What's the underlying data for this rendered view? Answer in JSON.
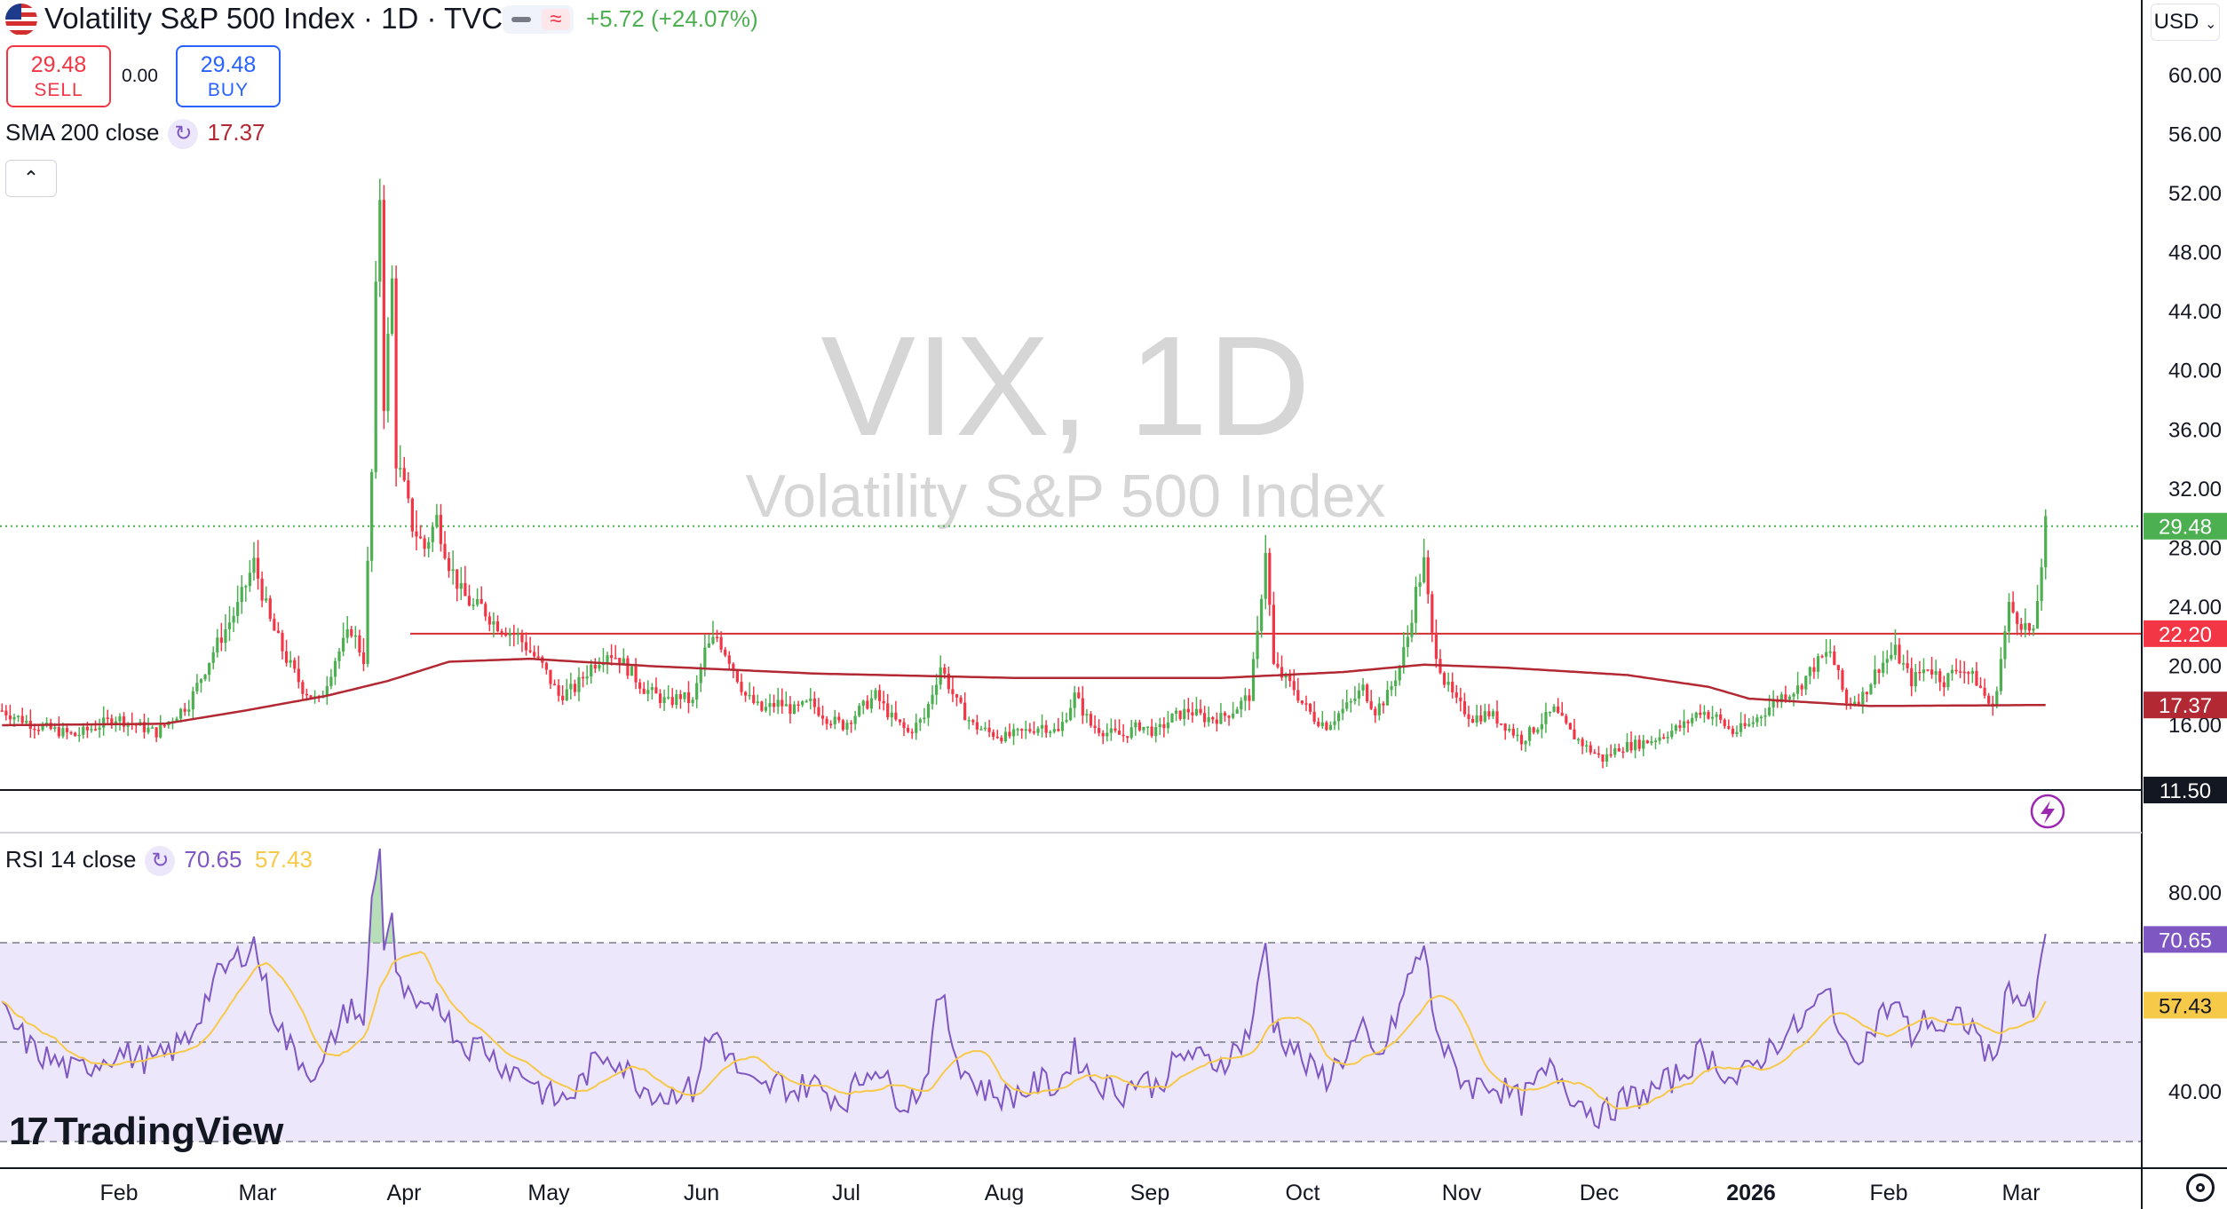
{
  "header": {
    "title": "Volatility S&P 500 Index · 1D · TVC",
    "change": "+5.72 (+24.07%)",
    "sell_price": "29.48",
    "sell_label": "SELL",
    "spread": "0.00",
    "buy_price": "29.48",
    "buy_label": "BUY",
    "currency": "USD",
    "collapse_icon": "chevron-up-icon",
    "dash_icon": "dash-icon",
    "wave_icon": "wave-icon",
    "flag_icon": "us-flag-icon",
    "refresh_icon": "refresh-icon"
  },
  "indicators": {
    "sma": {
      "label": "SMA 200 close",
      "value": "17.37"
    },
    "rsi": {
      "label": "RSI 14 close",
      "value": "70.65",
      "ma_value": "57.43"
    }
  },
  "watermark": {
    "symbol": "VIX, 1D",
    "name": "Volatility S&P 500 Index"
  },
  "brand": {
    "name": "TradingView"
  },
  "colors": {
    "up": "#4caf50",
    "down": "#f23645",
    "sma": "#b22833",
    "rsi": "#7e57c2",
    "rsi_ma": "#f7c948",
    "rsi_band": "#ede7fb",
    "hline": "#d32f2f"
  },
  "chart_data": [
    {
      "type": "candlestick",
      "title": "VIX, 1D",
      "price_axis": {
        "ticks": [
          "60.00",
          "56.00",
          "52.00",
          "48.00",
          "44.00",
          "40.00",
          "36.00",
          "32.00",
          "28.00",
          "24.00",
          "20.00",
          "16.00"
        ],
        "tick_values": [
          60,
          56,
          52,
          48,
          44,
          40,
          36,
          32,
          28,
          24,
          20,
          16
        ],
        "ylim": [
          10.0,
          61.5
        ]
      },
      "price_labels": [
        {
          "text": "29.48",
          "value": 29.48,
          "color": "#4caf50"
        },
        {
          "text": "22.20",
          "value": 22.2,
          "color": "#f23645"
        },
        {
          "text": "17.37",
          "value": 17.37,
          "color": "#b22833"
        },
        {
          "text": "11.50",
          "value": 11.5,
          "color": "#131722"
        }
      ],
      "horizontal_lines": [
        {
          "value": 22.2,
          "style": "solid",
          "from_month": "Apr"
        },
        {
          "value": 11.5,
          "style": "solid"
        }
      ],
      "last_price_line": 29.48,
      "months": [
        "Feb",
        "Mar",
        "Apr",
        "May",
        "Jun",
        "Jul",
        "Aug",
        "Sep",
        "Oct",
        "Nov",
        "Dec",
        "2026",
        "Feb",
        "Mar"
      ],
      "close_anchors": [
        [
          0,
          17
        ],
        [
          8,
          16
        ],
        [
          18,
          15.3
        ],
        [
          28,
          16.5
        ],
        [
          38,
          15.5
        ],
        [
          46,
          17.5
        ],
        [
          52,
          21
        ],
        [
          58,
          24
        ],
        [
          62,
          27
        ],
        [
          66,
          23
        ],
        [
          70,
          20.5
        ],
        [
          74,
          18.5
        ],
        [
          78,
          17.5
        ],
        [
          82,
          20.5
        ],
        [
          86,
          22.5
        ],
        [
          89,
          20.5
        ],
        [
          91,
          33
        ],
        [
          92,
          45
        ],
        [
          93,
          52
        ],
        [
          94,
          38
        ],
        [
          96,
          46
        ],
        [
          97,
          34
        ],
        [
          99,
          32
        ],
        [
          101,
          29.5
        ],
        [
          104,
          28
        ],
        [
          107,
          30
        ],
        [
          110,
          27
        ],
        [
          113,
          25
        ],
        [
          116,
          24
        ],
        [
          118,
          24
        ],
        [
          121,
          23
        ],
        [
          124,
          22.5
        ],
        [
          127,
          22
        ],
        [
          130,
          21
        ],
        [
          133,
          20
        ],
        [
          137,
          18
        ],
        [
          141,
          18.5
        ],
        [
          145,
          20
        ],
        [
          149,
          21
        ],
        [
          152,
          20.5
        ],
        [
          155,
          19.5
        ],
        [
          158,
          18.5
        ],
        [
          161,
          18
        ],
        [
          164,
          17.5
        ],
        [
          167,
          18
        ],
        [
          170,
          17.5
        ],
        [
          173,
          21
        ],
        [
          176,
          22
        ],
        [
          179,
          20.5
        ],
        [
          183,
          18
        ],
        [
          187,
          17
        ],
        [
          191,
          17.5
        ],
        [
          195,
          17
        ],
        [
          199,
          17.5
        ],
        [
          203,
          16.5
        ],
        [
          207,
          16
        ],
        [
          211,
          17
        ],
        [
          215,
          18
        ],
        [
          219,
          16.5
        ],
        [
          223,
          15.5
        ],
        [
          227,
          16.5
        ],
        [
          231,
          20
        ],
        [
          235,
          17.5
        ],
        [
          239,
          16
        ],
        [
          243,
          15.5
        ],
        [
          247,
          15.2
        ],
        [
          251,
          15.5
        ],
        [
          256,
          16
        ],
        [
          260,
          15.5
        ],
        [
          264,
          18
        ],
        [
          268,
          16
        ],
        [
          272,
          15.5
        ],
        [
          276,
          15.3
        ],
        [
          280,
          16
        ],
        [
          284,
          15.5
        ],
        [
          288,
          16.5
        ],
        [
          292,
          17
        ],
        [
          296,
          16.5
        ],
        [
          300,
          16.5
        ],
        [
          303,
          17
        ],
        [
          307,
          18
        ],
        [
          309,
          22
        ],
        [
          311,
          28
        ],
        [
          313,
          20
        ],
        [
          316,
          19
        ],
        [
          318,
          18.5
        ],
        [
          320,
          17.5
        ],
        [
          323,
          16.5
        ],
        [
          326,
          16
        ],
        [
          329,
          16.8
        ],
        [
          332,
          17.5
        ],
        [
          335,
          18.5
        ],
        [
          338,
          17
        ],
        [
          341,
          18
        ],
        [
          344,
          20
        ],
        [
          346,
          22
        ],
        [
          348,
          25
        ],
        [
          350,
          27
        ],
        [
          352,
          22
        ],
        [
          355,
          19
        ],
        [
          358,
          17.5
        ],
        [
          362,
          16.5
        ],
        [
          366,
          16.8
        ],
        [
          370,
          16
        ],
        [
          374,
          15
        ],
        [
          378,
          16
        ],
        [
          382,
          17
        ],
        [
          386,
          15.5
        ],
        [
          390,
          14.5
        ],
        [
          394,
          13.7
        ],
        [
          398,
          14.5
        ],
        [
          402,
          14.7
        ],
        [
          406,
          15
        ],
        [
          410,
          15.5
        ],
        [
          414,
          16
        ],
        [
          418,
          17
        ],
        [
          422,
          16.5
        ],
        [
          426,
          15.5
        ],
        [
          430,
          16
        ],
        [
          434,
          17
        ],
        [
          438,
          18
        ],
        [
          442,
          18.5
        ],
        [
          446,
          20
        ],
        [
          450,
          21
        ],
        [
          454,
          17.5
        ],
        [
          458,
          18
        ],
        [
          462,
          20
        ],
        [
          466,
          21
        ],
        [
          470,
          19
        ],
        [
          474,
          20
        ],
        [
          478,
          19
        ],
        [
          482,
          20
        ],
        [
          486,
          19
        ],
        [
          490,
          17
        ],
        [
          494,
          24
        ],
        [
          497,
          23
        ],
        [
          500,
          22
        ],
        [
          503,
          29.5
        ]
      ],
      "sma_anchors": [
        [
          0,
          16.0
        ],
        [
          40,
          16.1
        ],
        [
          60,
          17
        ],
        [
          80,
          18
        ],
        [
          95,
          19
        ],
        [
          110,
          20.3
        ],
        [
          130,
          20.5
        ],
        [
          160,
          20.0
        ],
        [
          200,
          19.5
        ],
        [
          250,
          19.2
        ],
        [
          300,
          19.2
        ],
        [
          330,
          19.6
        ],
        [
          350,
          20.1
        ],
        [
          370,
          19.9
        ],
        [
          400,
          19.4
        ],
        [
          420,
          18.6
        ],
        [
          430,
          17.8
        ],
        [
          460,
          17.3
        ],
        [
          503,
          17.37
        ]
      ],
      "rsi_axis": {
        "ticks": [
          "80.00",
          "40.00"
        ],
        "tick_values": [
          80,
          40
        ],
        "ylim": [
          20,
          92
        ]
      },
      "rsi_labels": [
        {
          "text": "70.65",
          "value": 70.65,
          "color": "#7e57c2"
        },
        {
          "text": "57.43",
          "value": 57.43,
          "color": "#f7c948"
        }
      ],
      "rsi_levels": [
        70,
        50,
        30
      ],
      "rsi_anchors": [
        [
          0,
          56
        ],
        [
          8,
          48
        ],
        [
          18,
          44
        ],
        [
          28,
          48
        ],
        [
          38,
          46
        ],
        [
          46,
          51
        ],
        [
          52,
          62
        ],
        [
          58,
          67
        ],
        [
          62,
          70
        ],
        [
          66,
          58
        ],
        [
          70,
          50
        ],
        [
          74,
          46
        ],
        [
          78,
          43
        ],
        [
          82,
          52
        ],
        [
          86,
          58
        ],
        [
          89,
          52
        ],
        [
          91,
          78
        ],
        [
          92,
          85
        ],
        [
          93,
          88
        ],
        [
          94,
          70
        ],
        [
          96,
          76
        ],
        [
          97,
          62
        ],
        [
          99,
          60
        ],
        [
          101,
          57
        ],
        [
          104,
          55
        ],
        [
          107,
          60
        ],
        [
          110,
          54
        ],
        [
          113,
          50
        ],
        [
          116,
          49
        ],
        [
          118,
          50
        ],
        [
          121,
          47
        ],
        [
          124,
          45
        ],
        [
          127,
          44
        ],
        [
          130,
          43
        ],
        [
          133,
          40
        ],
        [
          137,
          38
        ],
        [
          141,
          40
        ],
        [
          145,
          45
        ],
        [
          149,
          48
        ],
        [
          152,
          46
        ],
        [
          155,
          43
        ],
        [
          158,
          41
        ],
        [
          161,
          40
        ],
        [
          164,
          39
        ],
        [
          167,
          41
        ],
        [
          170,
          40
        ],
        [
          173,
          49
        ],
        [
          176,
          52
        ],
        [
          179,
          47
        ],
        [
          183,
          42
        ],
        [
          187,
          40
        ],
        [
          191,
          42
        ],
        [
          195,
          40
        ],
        [
          199,
          42
        ],
        [
          203,
          40
        ],
        [
          207,
          38
        ],
        [
          211,
          42
        ],
        [
          215,
          46
        ],
        [
          219,
          40
        ],
        [
          223,
          38
        ],
        [
          227,
          42
        ],
        [
          231,
          60
        ],
        [
          235,
          47
        ],
        [
          239,
          42
        ],
        [
          243,
          40
        ],
        [
          247,
          39
        ],
        [
          251,
          40
        ],
        [
          256,
          42
        ],
        [
          260,
          41
        ],
        [
          264,
          48
        ],
        [
          268,
          43
        ],
        [
          272,
          41
        ],
        [
          276,
          40
        ],
        [
          280,
          43
        ],
        [
          284,
          41
        ],
        [
          288,
          45
        ],
        [
          292,
          48
        ],
        [
          296,
          46
        ],
        [
          300,
          46
        ],
        [
          303,
          48
        ],
        [
          307,
          52
        ],
        [
          309,
          60
        ],
        [
          311,
          70
        ],
        [
          313,
          54
        ],
        [
          316,
          50
        ],
        [
          318,
          49
        ],
        [
          320,
          46
        ],
        [
          323,
          44
        ],
        [
          326,
          43
        ],
        [
          329,
          46
        ],
        [
          332,
          49
        ],
        [
          335,
          52
        ],
        [
          338,
          46
        ],
        [
          341,
          50
        ],
        [
          344,
          57
        ],
        [
          346,
          62
        ],
        [
          348,
          66
        ],
        [
          350,
          69
        ],
        [
          352,
          57
        ],
        [
          355,
          48
        ],
        [
          358,
          44
        ],
        [
          362,
          41
        ],
        [
          366,
          42
        ],
        [
          370,
          40
        ],
        [
          374,
          38
        ],
        [
          378,
          42
        ],
        [
          382,
          45
        ],
        [
          386,
          40
        ],
        [
          390,
          37
        ],
        [
          394,
          35
        ],
        [
          398,
          38
        ],
        [
          402,
          39
        ],
        [
          406,
          40
        ],
        [
          410,
          42
        ],
        [
          414,
          44
        ],
        [
          418,
          48
        ],
        [
          422,
          46
        ],
        [
          426,
          42
        ],
        [
          430,
          44
        ],
        [
          434,
          48
        ],
        [
          438,
          51
        ],
        [
          442,
          53
        ],
        [
          446,
          57
        ],
        [
          450,
          60
        ],
        [
          454,
          47
        ],
        [
          458,
          49
        ],
        [
          462,
          55
        ],
        [
          466,
          58
        ],
        [
          470,
          51
        ],
        [
          474,
          55
        ],
        [
          478,
          52
        ],
        [
          482,
          55
        ],
        [
          486,
          52
        ],
        [
          490,
          45
        ],
        [
          494,
          62
        ],
        [
          497,
          58
        ],
        [
          500,
          56
        ],
        [
          503,
          70.65
        ]
      ]
    }
  ]
}
